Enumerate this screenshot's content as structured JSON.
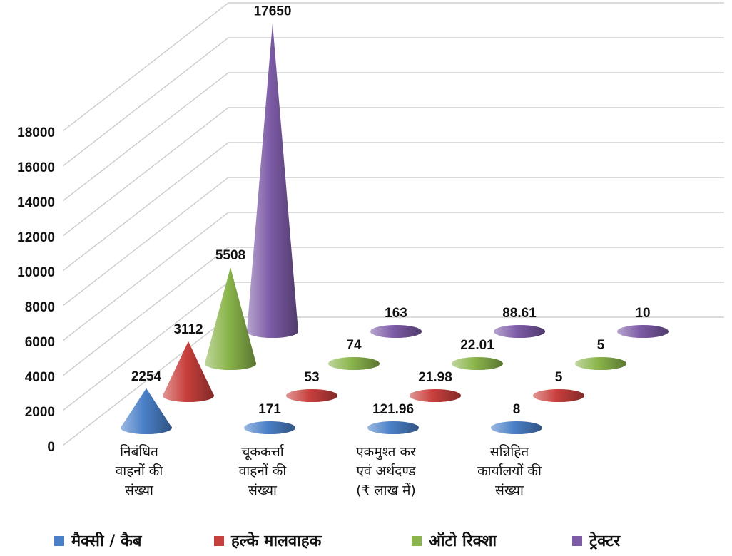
{
  "chart_data": {
    "type": "cone3d",
    "categories": [
      "निबंधित\nवाहनों की\nसंख्या",
      "चूककर्त्ता\nवाहनों की\nसंख्या",
      "एकमुश्त कर\nएवं अर्थदण्ड\n(₹ लाख में)",
      "सन्निहित\nकार्यालयों की\nसंख्या"
    ],
    "series": [
      {
        "name": "मैक्सी / कैब",
        "color": "#4a80c8",
        "values": [
          2254,
          171,
          121.96,
          8
        ]
      },
      {
        "name": "हल्के मालवाहक",
        "color": "#c8403d",
        "values": [
          3112,
          53,
          21.98,
          5
        ]
      },
      {
        "name": "ऑटो रिक्शा",
        "color": "#8ab54b",
        "values": [
          5508,
          74,
          22.01,
          5
        ]
      },
      {
        "name": "ट्रेक्टर",
        "color": "#7d5ba6",
        "values": [
          17650,
          163,
          88.61,
          10
        ]
      }
    ],
    "ylim": [
      0,
      18000
    ],
    "yticks": [
      0,
      2000,
      4000,
      6000,
      8000,
      10000,
      12000,
      14000,
      16000,
      18000
    ],
    "grid": true,
    "legend": "bottom"
  }
}
